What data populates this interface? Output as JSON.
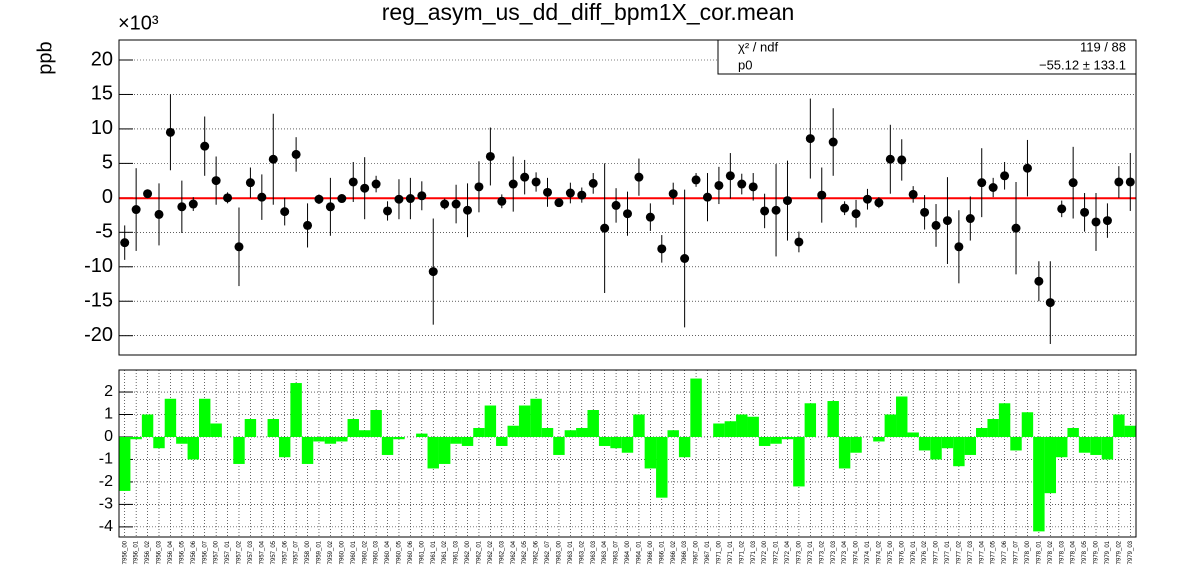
{
  "chart_data": [
    {
      "type": "errorbar",
      "title": "reg_asym_us_dd_diff_bpm1X_cor.mean",
      "y_label": "ppb",
      "y_exponent": "×10³",
      "color": "#000000",
      "grid": true,
      "ylim": [
        -22.8,
        22.9
      ],
      "yticks": [
        -20,
        -15,
        -10,
        -5,
        0,
        5,
        10,
        15,
        20
      ],
      "values": [
        -6.5,
        -1.7,
        0.6,
        -2.4,
        9.5,
        -1.3,
        -0.9,
        7.5,
        2.5,
        0,
        -7.1,
        2.2,
        0.1,
        5.6,
        -2,
        6.3,
        -4,
        -0.2,
        -1.3,
        -0.1,
        2.3,
        1.4,
        2,
        -1.9,
        -0.2,
        -0.1,
        0.3,
        -10.7,
        -0.9,
        -0.9,
        -1.8,
        1.6,
        6,
        -0.5,
        2,
        3,
        2.3,
        0.8,
        -0.7,
        0.7,
        0.4,
        2.1,
        -4.4,
        -1.1,
        -2.3,
        3,
        -2.8,
        -7.4,
        0.6,
        -8.8,
        2.6,
        0.1,
        1.8,
        3.2,
        2,
        1.6,
        -1.9,
        -1.8,
        -0.4,
        -6.4,
        8.6,
        0.4,
        8.1,
        -1.5,
        -2.3,
        -0.2,
        -0.7,
        5.6,
        5.5,
        0.5,
        -2.1,
        -4,
        -3.3,
        -7.1,
        -3,
        2.2,
        1.5,
        3.2,
        -4.4,
        4.3,
        -12.1,
        -15.2,
        -1.6,
        2.2,
        -2.1,
        -3.5,
        -3.3,
        2.3,
        2.3
      ],
      "errors": [
        2.5,
        6,
        0.5,
        4.5,
        5.5,
        3.8,
        1,
        4.3,
        3.5,
        0.8,
        5.7,
        2.2,
        3.3,
        6.6,
        2,
        2.5,
        3.2,
        0.7,
        4.2,
        0.5,
        2.9,
        4.5,
        1.2,
        1.4,
        2.9,
        3,
        2.1,
        7.7,
        0.8,
        2.8,
        3.9,
        3.7,
        4.2,
        1,
        4,
        2.5,
        1.4,
        2.1,
        0.6,
        1.5,
        1.1,
        1.5,
        9.4,
        2.5,
        3.2,
        2.7,
        2,
        2,
        1.6,
        10,
        1,
        3.5,
        2.7,
        3.3,
        1.5,
        2,
        2.5,
        6.7,
        5.8,
        1.5,
        5.8,
        4,
        4.9,
        1,
        2,
        1.5,
        0.8,
        5,
        3,
        1.2,
        2.5,
        3.1,
        6.3,
        5.3,
        3.2,
        5,
        1.4,
        2,
        6.7,
        4.1,
        2.9,
        6,
        1.2,
        5.2,
        2.8,
        4.2,
        2.5,
        2.3,
        4.2
      ],
      "fit": {
        "color": "#ff0000",
        "value": -0.05512
      },
      "stats": [
        [
          "χ² / ndf",
          "119 / 88"
        ],
        [
          "p0",
          "−55.12 ± 133.1"
        ]
      ]
    },
    {
      "type": "bar",
      "color": "#00ff00",
      "grid": true,
      "ylim": [
        -4.45,
        2.98
      ],
      "yticks": [
        -4,
        -3,
        -2,
        -1,
        0,
        1,
        2
      ],
      "categories": [
        "7956_00",
        "7956_01",
        "7956_02",
        "7956_03",
        "7956_04",
        "7956_05",
        "7956_06",
        "7956_07",
        "7957_00",
        "7957_01",
        "7957_02",
        "7957_03",
        "7957_04",
        "7957_05",
        "7957_06",
        "7957_07",
        "7958_00",
        "7959_01",
        "7959_02",
        "7960_00",
        "7960_01",
        "7960_02",
        "7960_03",
        "7960_04",
        "7960_05",
        "7960_06",
        "7961_00",
        "7961_01",
        "7961_02",
        "7961_03",
        "7962_00",
        "7962_01",
        "7962_02",
        "7962_03",
        "7962_04",
        "7962_05",
        "7962_06",
        "7962_07",
        "7963_00",
        "7963_01",
        "7963_02",
        "7963_03",
        "7963_04",
        "7963_07",
        "7964_00",
        "7964_01",
        "7966_00",
        "7966_01",
        "7966_02",
        "7966_03",
        "7967_00",
        "7967_01",
        "7971_00",
        "7971_01",
        "7971_02",
        "7971_03",
        "7972_00",
        "7972_01",
        "7972_04",
        "7973_00",
        "7973_01",
        "7973_02",
        "7973_03",
        "7973_04",
        "7974_00",
        "7974_01",
        "7974_02",
        "7975_00",
        "7976_00",
        "7976_01",
        "7976_02",
        "7977_00",
        "7977_01",
        "7977_02",
        "7977_03",
        "7977_04",
        "7977_05",
        "7977_06",
        "7977_07",
        "7978_00",
        "7978_01",
        "7978_02",
        "7978_03",
        "7978_04",
        "7978_05",
        "7979_00",
        "7979_01",
        "7979_02",
        "7979_03"
      ],
      "values": [
        -2.4,
        -0.1,
        1.0,
        -0.5,
        1.7,
        -0.3,
        -1.0,
        1.7,
        0.6,
        0,
        -1.2,
        0.8,
        0,
        0.8,
        -0.9,
        2.4,
        -1.2,
        -0.2,
        -0.3,
        -0.2,
        0.8,
        0.3,
        1.2,
        -0.8,
        -0.1,
        0,
        0.15,
        -1.4,
        -1.2,
        -0.3,
        -0.4,
        0.4,
        1.4,
        -0.4,
        0.5,
        1.4,
        1.7,
        0.4,
        -0.8,
        0.3,
        0.4,
        1.2,
        -0.4,
        -0.5,
        -0.7,
        1.0,
        -1.4,
        -2.7,
        0.3,
        -0.9,
        2.6,
        0,
        0.6,
        0.7,
        1.0,
        0.9,
        -0.4,
        -0.3,
        -0.1,
        -2.2,
        1.5,
        0,
        1.6,
        -1.4,
        -0.7,
        0,
        -0.2,
        1.0,
        1.8,
        0.2,
        -0.6,
        -1.0,
        -0.5,
        -1.3,
        -0.8,
        0.4,
        0.8,
        1.5,
        -0.6,
        1.1,
        -4.2,
        -2.5,
        -0.9,
        0.4,
        -0.7,
        -0.8,
        -1.0,
        1.0,
        0.5
      ]
    }
  ]
}
